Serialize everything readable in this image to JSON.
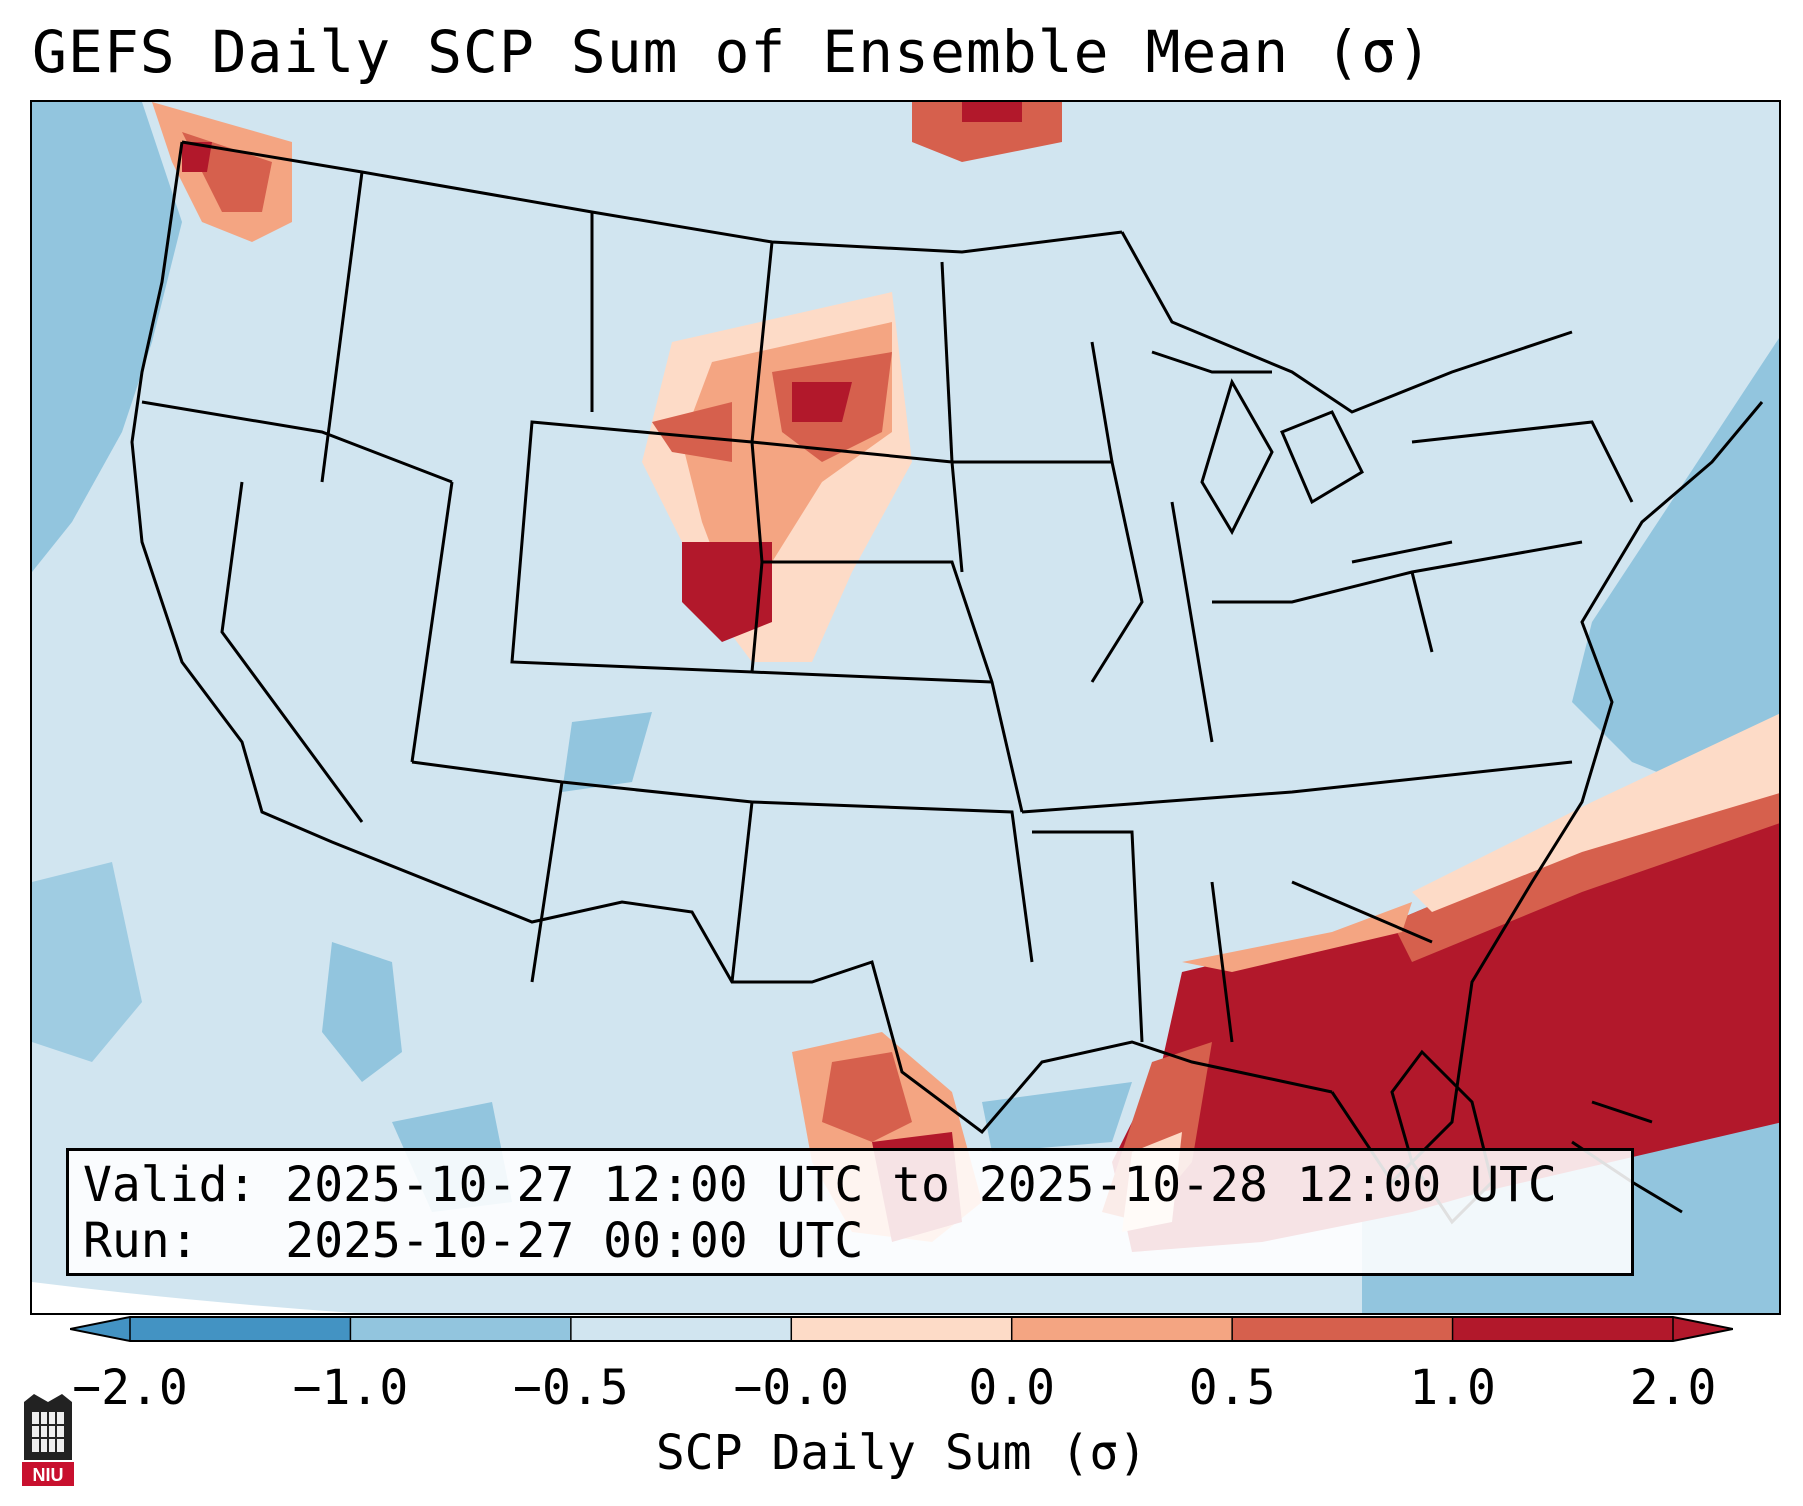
{
  "title": "GEFS Daily SCP Sum of Ensemble Mean (σ)",
  "info": {
    "valid_line": "Valid: 2025-10-27 12:00 UTC to 2025-10-28 12:00 UTC",
    "run_line": "Run:   2025-10-27 00:00 UTC"
  },
  "colorbar": {
    "label": "SCP Daily Sum (σ)",
    "ticks": [
      "−2.0",
      "−1.0",
      "−0.5",
      "−0.0",
      "0.0",
      "0.5",
      "1.0",
      "2.0"
    ],
    "colors": [
      "#4393c3",
      "#92c5de",
      "#d1e5f0",
      "#f7f7f7",
      "#fddbc7",
      "#f4a582",
      "#d6604d",
      "#b2182b"
    ],
    "extend": "both"
  },
  "logo": {
    "text": "NIU"
  },
  "colors": {
    "ocean_background": "#cfe3ef",
    "neg_light": "#92c5de",
    "pos_pale": "#fddbc7",
    "pos_light": "#f4a582",
    "pos_mid": "#d6604d",
    "pos_strong": "#b2182b"
  }
}
